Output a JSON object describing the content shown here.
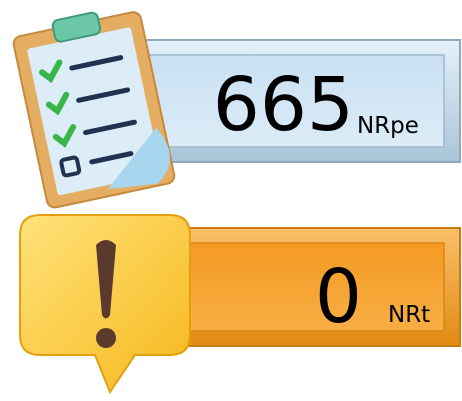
{
  "panels": [
    {
      "value": 665,
      "unit": "NRpe"
    },
    {
      "value": 0,
      "unit": "NRt"
    }
  ]
}
